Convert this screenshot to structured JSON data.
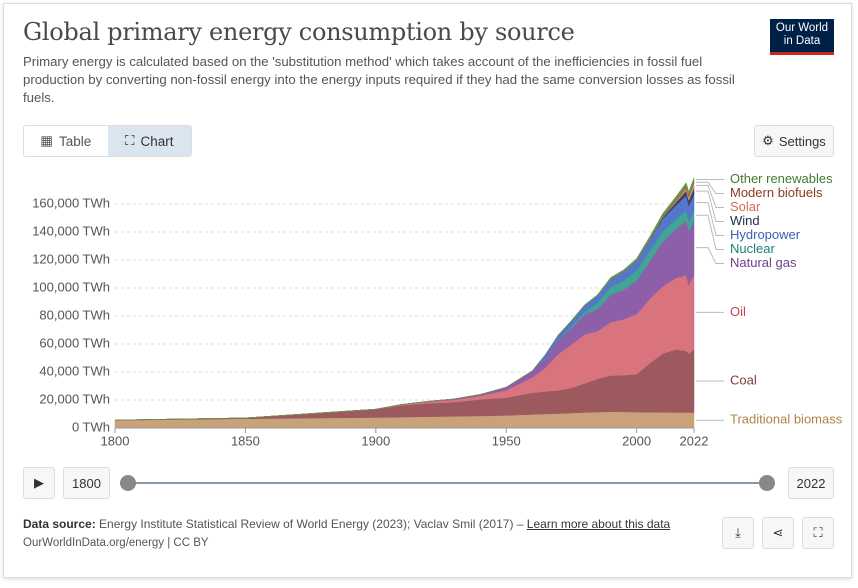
{
  "header": {
    "title": "Global primary energy consumption by source",
    "subtitle": "Primary energy is calculated based on the 'substitution method' which takes account of the inefficiencies in fossil fuel production by converting non-fossil energy into the energy inputs required if they had the same conversion losses as fossil fuels.",
    "logo": [
      "Our World",
      "in Data"
    ]
  },
  "tabs": [
    "Table",
    "Chart"
  ],
  "settings": "Settings",
  "timeline": {
    "start": "1800",
    "end": "2022"
  },
  "footer": {
    "source_label": "Data source:",
    "source": "Energy Institute Statistical Review of World Energy (2023); Vaclav Smil (2017) –",
    "link": "Learn more about this data",
    "credit": "OurWorldInData.org/energy | CC BY"
  },
  "chart_data": {
    "type": "stacked_area",
    "x": [
      1800,
      1850,
      1900,
      1910,
      1920,
      1930,
      1940,
      1950,
      1960,
      1965,
      1970,
      1975,
      1980,
      1985,
      1990,
      1995,
      2000,
      2005,
      2010,
      2015,
      2019,
      2020,
      2022
    ],
    "xlim": [
      1800,
      2022
    ],
    "xticks": [
      1800,
      1850,
      1900,
      1950,
      2000,
      2022
    ],
    "ylim": [
      0,
      180000
    ],
    "yticks": [
      {
        "value": 0,
        "label": "0 TWh"
      },
      {
        "value": 20000,
        "label": "20,000 TWh"
      },
      {
        "value": 40000,
        "label": "40,000 TWh"
      },
      {
        "value": 60000,
        "label": "60,000 TWh"
      },
      {
        "value": 80000,
        "label": "80,000 TWh"
      },
      {
        "value": 100000,
        "label": "100,000 TWh"
      },
      {
        "value": 120000,
        "label": "120,000 TWh"
      },
      {
        "value": 140000,
        "label": "140,000 TWh"
      },
      {
        "value": 160000,
        "label": "160,000 TWh"
      }
    ],
    "grid": true,
    "series": [
      {
        "name": "Traditional biomass",
        "color": "#c9a27a",
        "label_color": "#b0834a",
        "values": [
          5556,
          6611,
          7500,
          7778,
          8056,
          8333,
          8611,
          9000,
          9700,
          10000,
          10300,
          10700,
          11100,
          11400,
          11600,
          11500,
          11400,
          11200,
          11200,
          11100,
          11100,
          11100,
          11100
        ]
      },
      {
        "name": "Coal",
        "color": "#9c5a5f",
        "label_color": "#7a3c40",
        "values": [
          97,
          570,
          5700,
          8500,
          9600,
          10100,
          11800,
          12600,
          15500,
          16100,
          16600,
          18000,
          20700,
          23700,
          25900,
          26200,
          27000,
          35000,
          42000,
          45000,
          44000,
          42000,
          45000
        ]
      },
      {
        "name": "Oil",
        "color": "#d9747f",
        "label_color": "#c0434f",
        "values": [
          0,
          0,
          180,
          400,
          1100,
          1700,
          2600,
          5400,
          11000,
          17000,
          26000,
          31000,
          35000,
          34000,
          38000,
          40000,
          43000,
          46000,
          48000,
          51000,
          54000,
          49000,
          53000
        ]
      },
      {
        "name": "Natural gas",
        "color": "#8c5fa8",
        "label_color": "#6d3e91",
        "values": [
          0,
          0,
          60,
          150,
          270,
          600,
          900,
          2100,
          4600,
          6400,
          10000,
          11700,
          14000,
          16000,
          19500,
          21000,
          24000,
          27000,
          32000,
          35000,
          39000,
          38500,
          39500
        ]
      },
      {
        "name": "Nuclear",
        "color": "#3ea793",
        "label_color": "#18817a",
        "values": [
          0,
          0,
          0,
          0,
          0,
          0,
          0,
          0,
          0,
          70,
          230,
          1100,
          2000,
          4100,
          5500,
          6400,
          7000,
          7200,
          7100,
          6700,
          7000,
          6800,
          6700
        ]
      },
      {
        "name": "Hydropower",
        "color": "#5577c8",
        "label_color": "#3a62b0",
        "values": [
          0,
          0,
          0,
          0,
          0,
          0,
          0,
          0,
          0,
          2700,
          3300,
          4000,
          4700,
          5400,
          5800,
          6600,
          7100,
          7800,
          9000,
          10000,
          10900,
          11300,
          11400
        ]
      },
      {
        "name": "Wind",
        "color": "#33446f",
        "label_color": "#1f2a4d",
        "values": [
          0,
          0,
          0,
          0,
          0,
          0,
          0,
          0,
          0,
          0,
          0,
          0,
          0,
          0,
          0,
          10,
          80,
          280,
          900,
          2200,
          3500,
          3900,
          5000
        ]
      },
      {
        "name": "Solar",
        "color": "#e88d78",
        "label_color": "#d96b4f",
        "values": [
          0,
          0,
          0,
          0,
          0,
          0,
          0,
          0,
          0,
          0,
          0,
          0,
          0,
          0,
          0,
          0,
          0,
          0,
          90,
          700,
          1800,
          2200,
          3200
        ]
      },
      {
        "name": "Modern biofuels",
        "color": "#a85c3a",
        "label_color": "#8c3b1f",
        "values": [
          0,
          0,
          0,
          0,
          0,
          0,
          0,
          0,
          0,
          0,
          0,
          0,
          0,
          0,
          250,
          250,
          300,
          600,
          1100,
          1300,
          1600,
          1500,
          1300
        ]
      },
      {
        "name": "Other renewables",
        "color": "#5a9e4a",
        "label_color": "#3f7a32",
        "values": [
          0,
          0,
          0,
          0,
          0,
          0,
          0,
          0,
          0,
          150,
          200,
          300,
          400,
          600,
          900,
          1000,
          1200,
          1500,
          1800,
          2100,
          2400,
          2500,
          2600
        ]
      }
    ]
  }
}
